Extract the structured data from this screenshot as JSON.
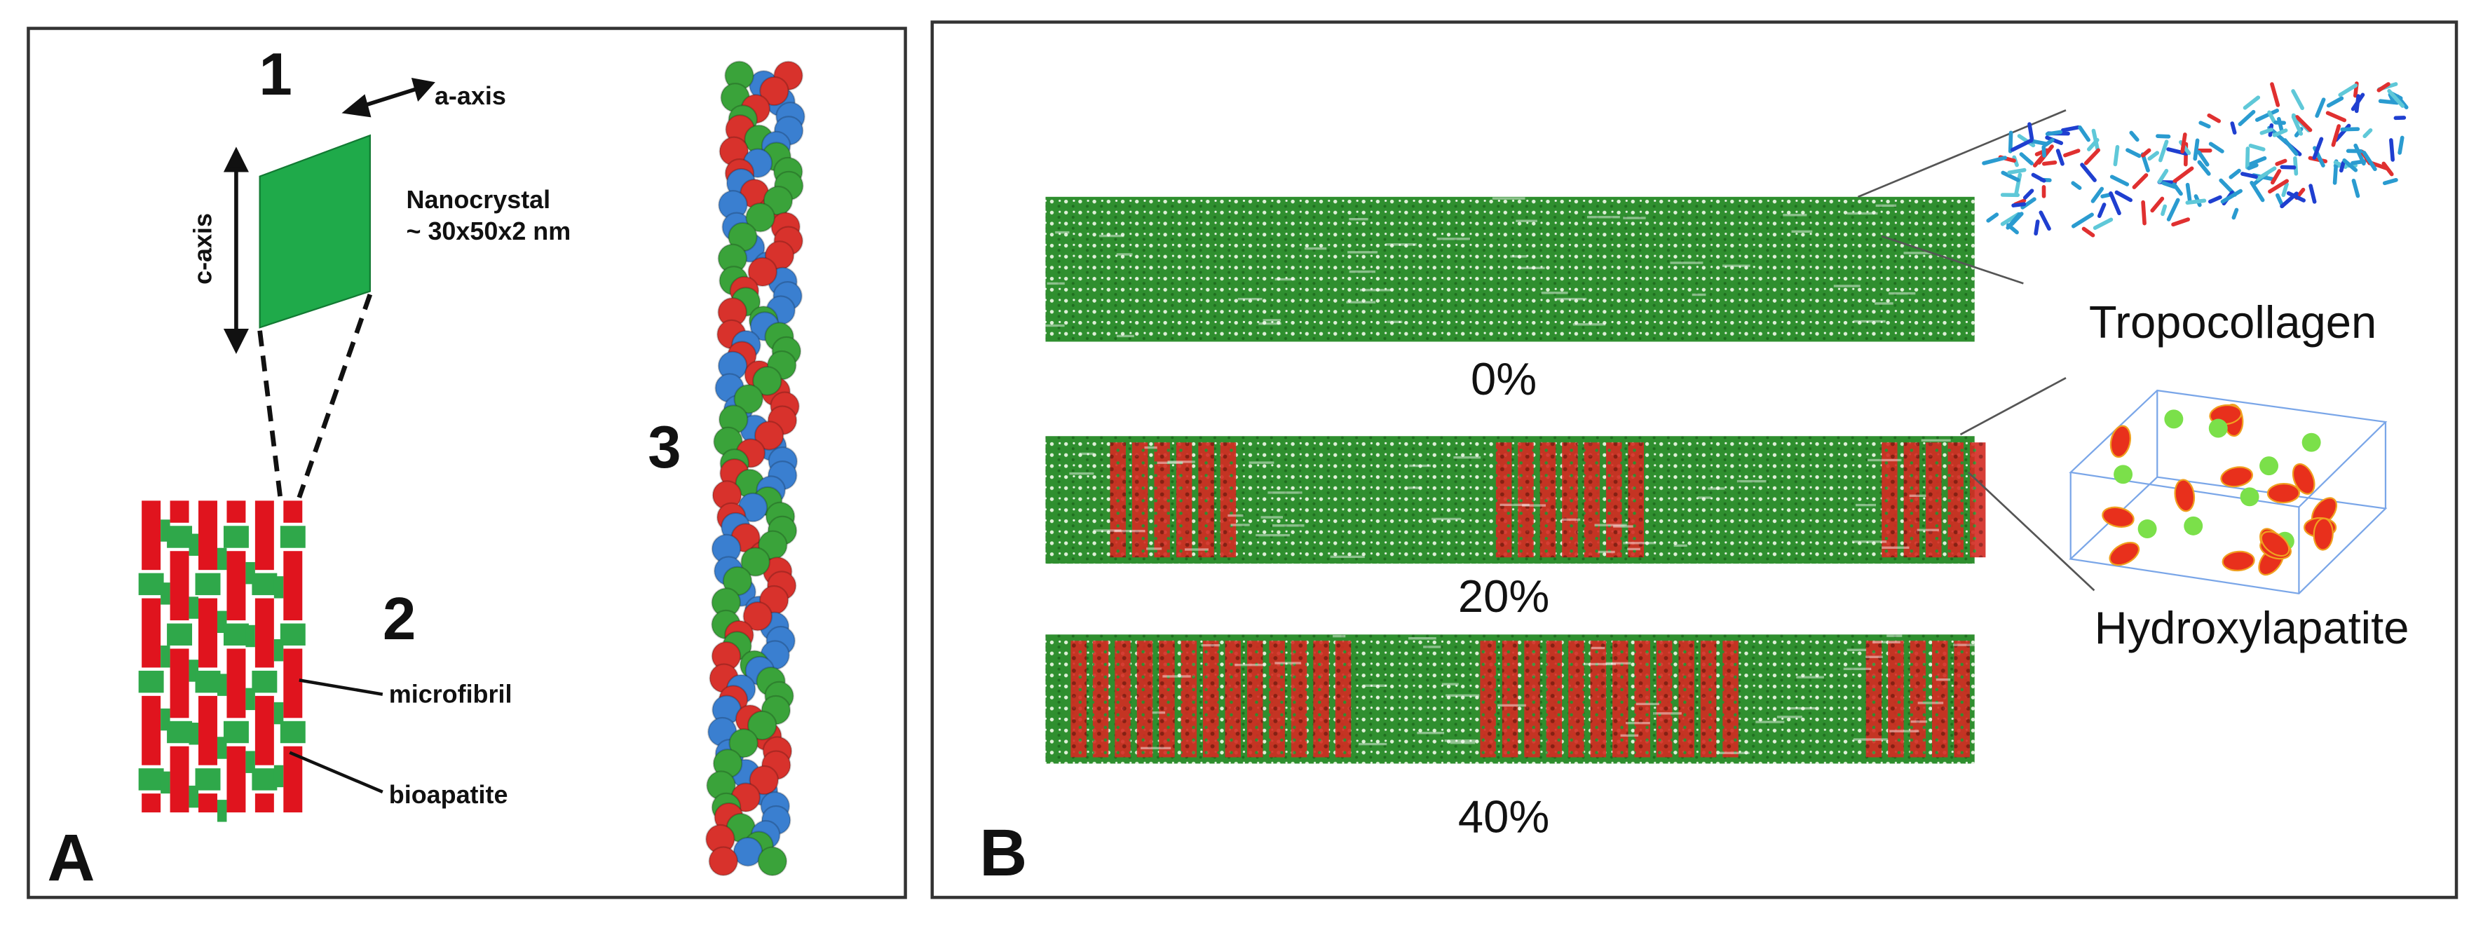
{
  "panel_a": {
    "label": "A",
    "nanocrystal": {
      "number": "1",
      "a_axis": "a-axis",
      "c_axis": "c-axis",
      "description": [
        "Nanocrystal",
        "~ 30x50x2 nm"
      ]
    },
    "fibril": {
      "number": "2",
      "labels": [
        "microfibril",
        "bioapatite"
      ]
    },
    "helix": {
      "number": "3"
    }
  },
  "panel_b": {
    "label": "B",
    "models": [
      {
        "label": "0%"
      },
      {
        "label": "20%"
      },
      {
        "label": "40%"
      }
    ],
    "insets": [
      {
        "label": "Tropocollagen"
      },
      {
        "label": "Hydroxylapatite"
      }
    ]
  }
}
